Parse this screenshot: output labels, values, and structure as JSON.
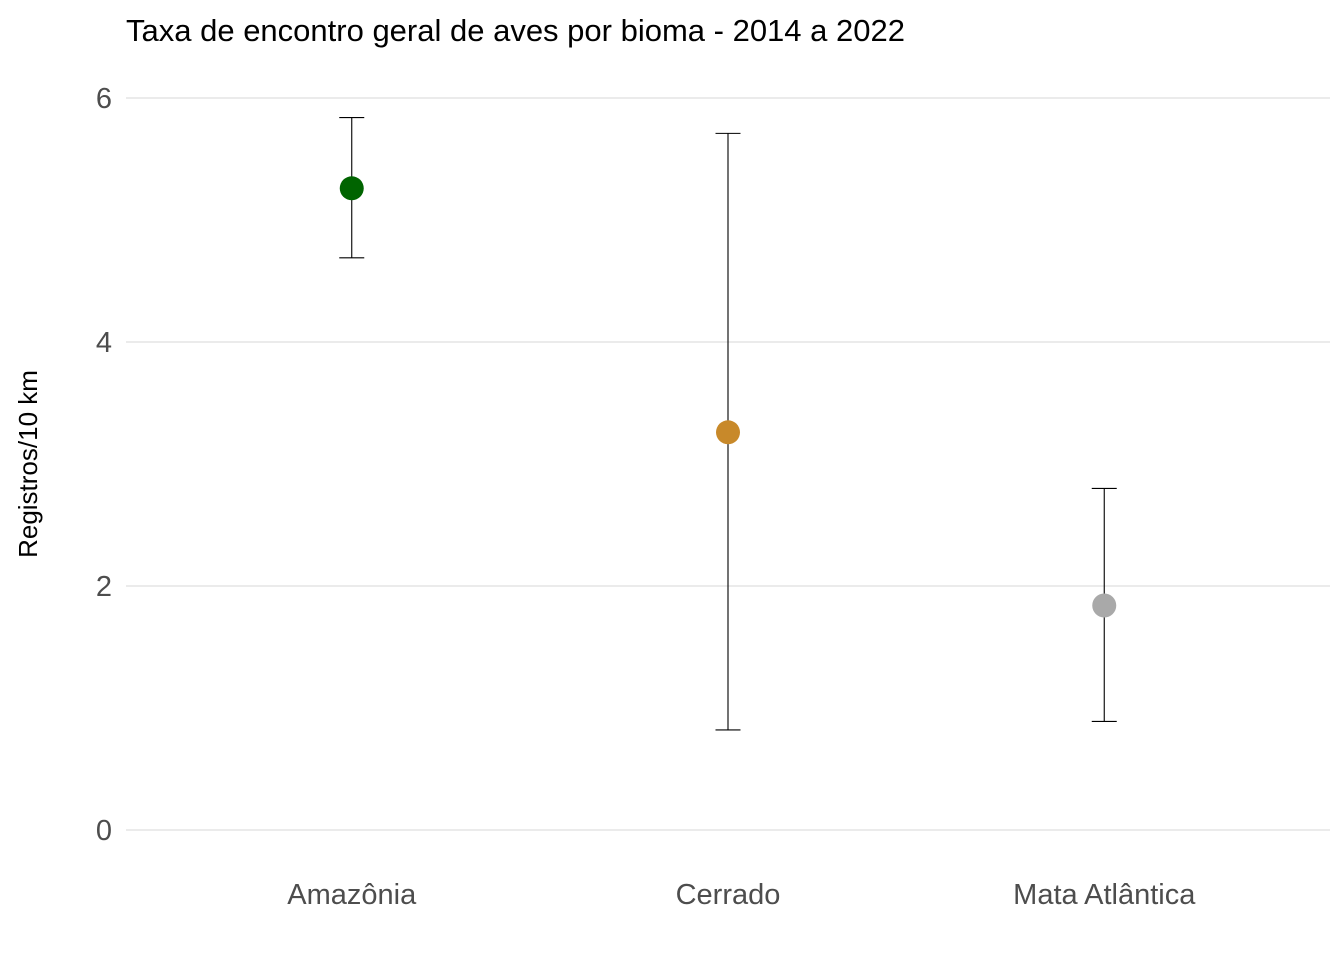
{
  "chart_data": {
    "type": "scatter",
    "title": "Taxa de encontro geral de aves por bioma - 2014 a 2022",
    "xlabel": "",
    "ylabel": "Registros/10 km",
    "ylim": [
      0,
      6
    ],
    "yticks": [
      0,
      2,
      4,
      6
    ],
    "grid": "horizontal-major",
    "legend": "none",
    "categories": [
      "Amazônia",
      "Cerrado",
      "Mata Atlântica"
    ],
    "values": [
      5.26,
      3.26,
      1.84
    ],
    "error_lower": [
      4.69,
      0.82,
      0.89
    ],
    "error_upper": [
      5.84,
      5.71,
      2.8
    ],
    "colors": [
      "#006400",
      "#C8892A",
      "#A9A9A9"
    ]
  }
}
